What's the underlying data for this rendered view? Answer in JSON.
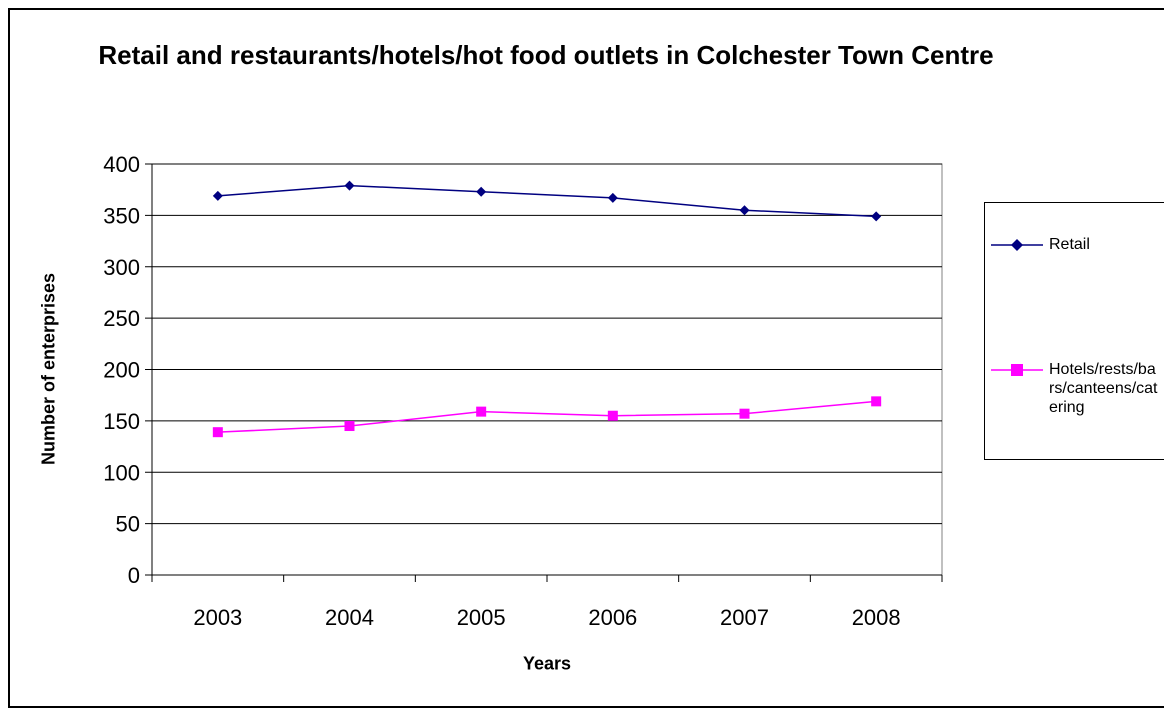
{
  "chart_data": {
    "type": "line",
    "title": "Retail and restaurants/hotels/hot food outlets in Colchester Town Centre",
    "xlabel": "Years",
    "ylabel": "Number of enterprises",
    "categories": [
      "2003",
      "2004",
      "2005",
      "2006",
      "2007",
      "2008"
    ],
    "ylim": [
      0,
      400
    ],
    "yticks": [
      0,
      50,
      100,
      150,
      200,
      250,
      300,
      350,
      400
    ],
    "grid": "horizontal",
    "legend_position": "right",
    "series": [
      {
        "name": "Retail",
        "values": [
          369,
          379,
          373,
          367,
          355,
          349
        ],
        "color": "#000080",
        "marker": "diamond"
      },
      {
        "name": "Hotels/rests/bars/canteens/catering",
        "values": [
          139,
          145,
          159,
          155,
          157,
          169
        ],
        "color": "#FF00FF",
        "marker": "square"
      }
    ]
  }
}
